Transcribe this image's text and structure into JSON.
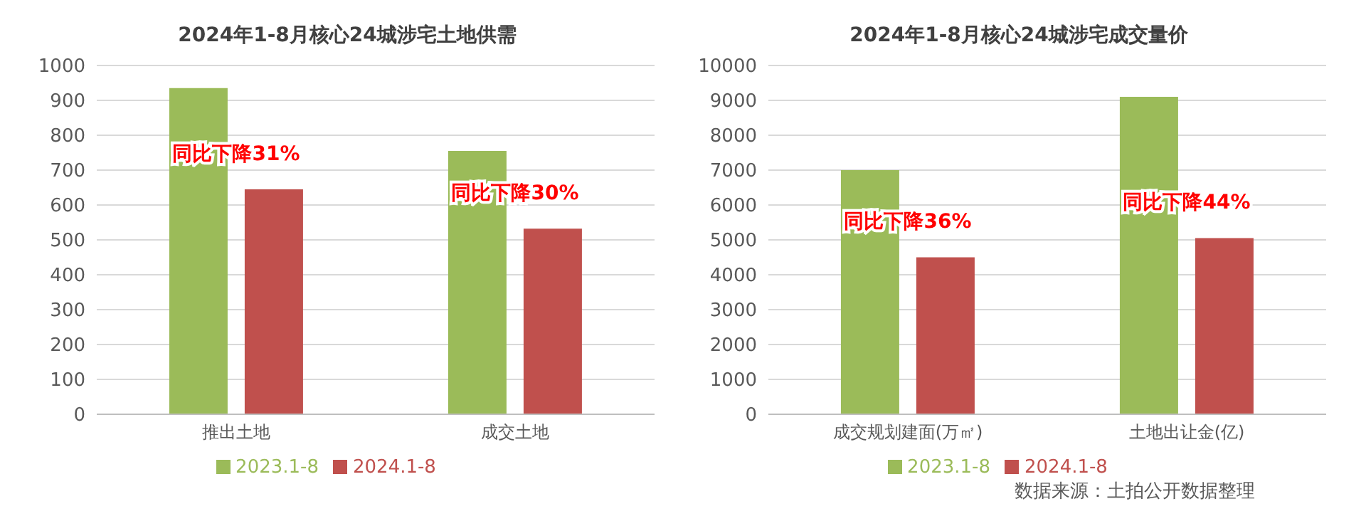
{
  "chart_data": [
    {
      "type": "bar",
      "title": "2024年1-8月核心24城涉宅土地供需",
      "categories": [
        "推出土地",
        "成交土地"
      ],
      "series": [
        {
          "name": "2023.1-8",
          "color": "#9bbb59",
          "values": [
            935,
            755
          ]
        },
        {
          "name": "2024.1-8",
          "color": "#c0504d",
          "values": [
            645,
            532
          ]
        }
      ],
      "ylim": [
        0,
        1000
      ],
      "yticks": [
        0,
        100,
        200,
        300,
        400,
        500,
        600,
        700,
        800,
        900,
        1000
      ],
      "grid": "y",
      "legend": "bottom",
      "annotations": [
        "同比下降31%",
        "同比下降30%"
      ]
    },
    {
      "type": "bar",
      "title": "2024年1-8月核心24城涉宅成交量价",
      "categories": [
        "成交规划建面(万㎡)",
        "土地出让金(亿)"
      ],
      "series": [
        {
          "name": "2023.1-8",
          "color": "#9bbb59",
          "values": [
            7000,
            9100
          ]
        },
        {
          "name": "2024.1-8",
          "color": "#c0504d",
          "values": [
            4500,
            5050
          ]
        }
      ],
      "ylim": [
        0,
        10000
      ],
      "yticks": [
        0,
        1000,
        2000,
        3000,
        4000,
        5000,
        6000,
        7000,
        8000,
        9000,
        10000
      ],
      "grid": "y",
      "legend": "bottom",
      "annotations": [
        "同比下降36%",
        "同比下降44%",
        "数据来源：土拍公开数据整理"
      ]
    }
  ]
}
